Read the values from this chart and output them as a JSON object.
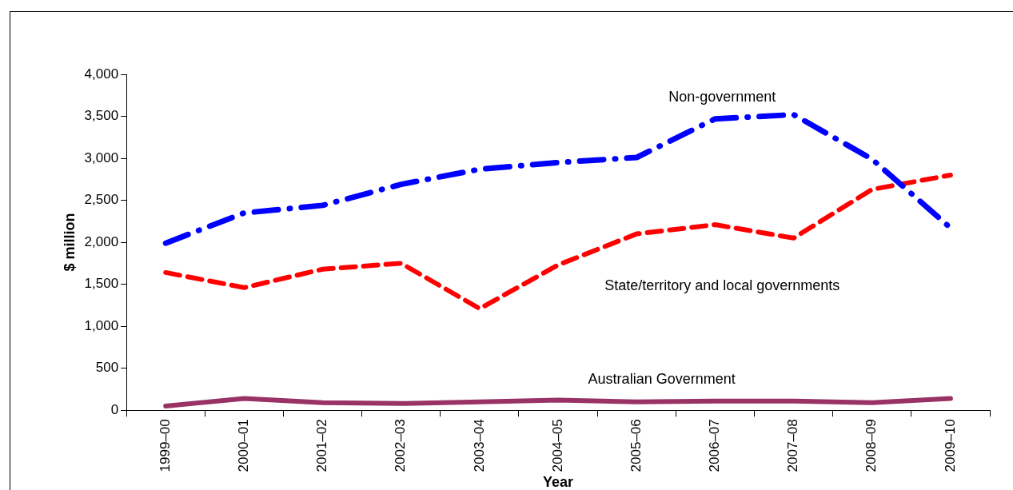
{
  "chart_data": {
    "type": "line",
    "xlabel": "Year",
    "ylabel": "$ million",
    "categories": [
      "1999–00",
      "2000–01",
      "2001–02",
      "2002–03",
      "2003–04",
      "2004–05",
      "2005–06",
      "2006–07",
      "2007–08",
      "2008–09",
      "2009–10"
    ],
    "series": [
      {
        "name": "Non-government",
        "color": "#0000ff",
        "line_style": "dashdot",
        "values": [
          1990,
          2350,
          2440,
          2690,
          2870,
          2950,
          3010,
          3470,
          3520,
          2990,
          2170
        ]
      },
      {
        "name": "State/territory and local governments",
        "color": "#ff0000",
        "line_style": "dashed",
        "values": [
          1640,
          1460,
          1680,
          1750,
          1210,
          1730,
          2100,
          2210,
          2050,
          2630,
          2800
        ]
      },
      {
        "name": "Australian Government",
        "color": "#993366",
        "line_style": "solid",
        "values": [
          50,
          140,
          90,
          80,
          100,
          120,
          100,
          110,
          110,
          90,
          140
        ]
      }
    ],
    "ylim": [
      0,
      4000
    ],
    "yticks": [
      0,
      500,
      {
        "value": 1000,
        "label": "1,000"
      },
      {
        "value": 1500,
        "label": "1,500"
      },
      {
        "value": 2000,
        "label": "2,000"
      },
      {
        "value": 2500,
        "label": "2,500"
      },
      {
        "value": 3000,
        "label": "3,000"
      },
      {
        "value": 3500,
        "label": "3,500"
      },
      {
        "value": 4000,
        "label": "4,000"
      }
    ],
    "grid": false,
    "legend": false,
    "marker": "none"
  }
}
